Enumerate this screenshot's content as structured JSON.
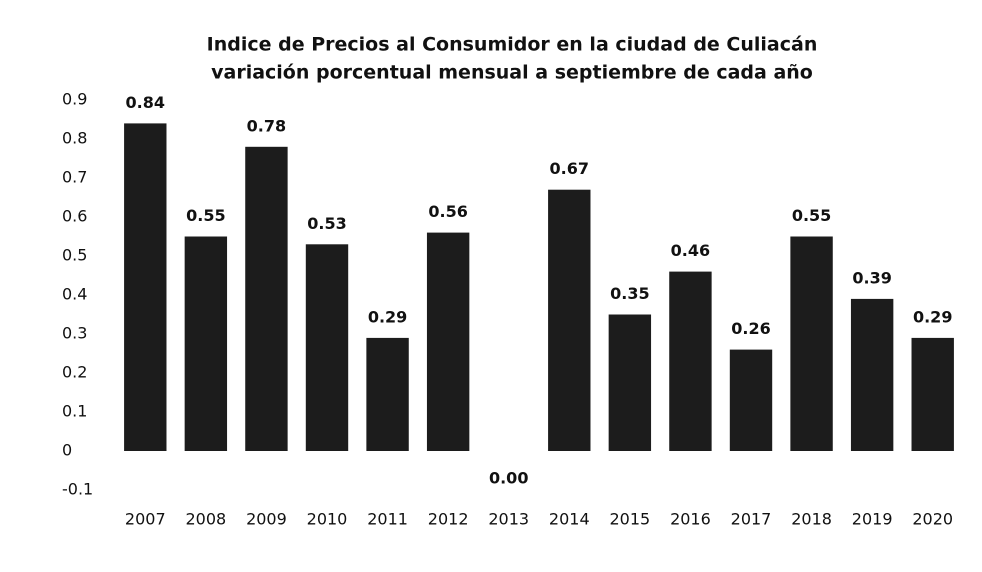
{
  "chart_data": {
    "type": "bar",
    "title": "Indice de Precios al Consumidor en la ciudad de Culiacán",
    "subtitle": "variación porcentual mensual a  septiembre de cada año",
    "categories": [
      "2007",
      "2008",
      "2009",
      "2010",
      "2011",
      "2012",
      "2013",
      "2014",
      "2015",
      "2016",
      "2017",
      "2018",
      "2019",
      "2020"
    ],
    "values": [
      0.84,
      0.55,
      0.78,
      0.53,
      0.29,
      0.56,
      0,
      0.67,
      0.35,
      0.46,
      0.26,
      0.55,
      0.39,
      0.29
    ],
    "value_labels": [
      "0.84",
      "0.55",
      "0.78",
      "0.53",
      "0.29",
      "0.56",
      "0.00",
      "0.67",
      "0.35",
      "0.46",
      "0.26",
      "0.55",
      "0.39",
      "0.29"
    ],
    "color": "#1c1c1c",
    "ylim": [
      -0.1,
      0.9
    ],
    "yticks": [
      -0.1,
      0,
      0.1,
      0.2,
      0.3,
      0.4,
      0.5,
      0.6,
      0.7,
      0.8,
      0.9
    ],
    "grid": false
  }
}
